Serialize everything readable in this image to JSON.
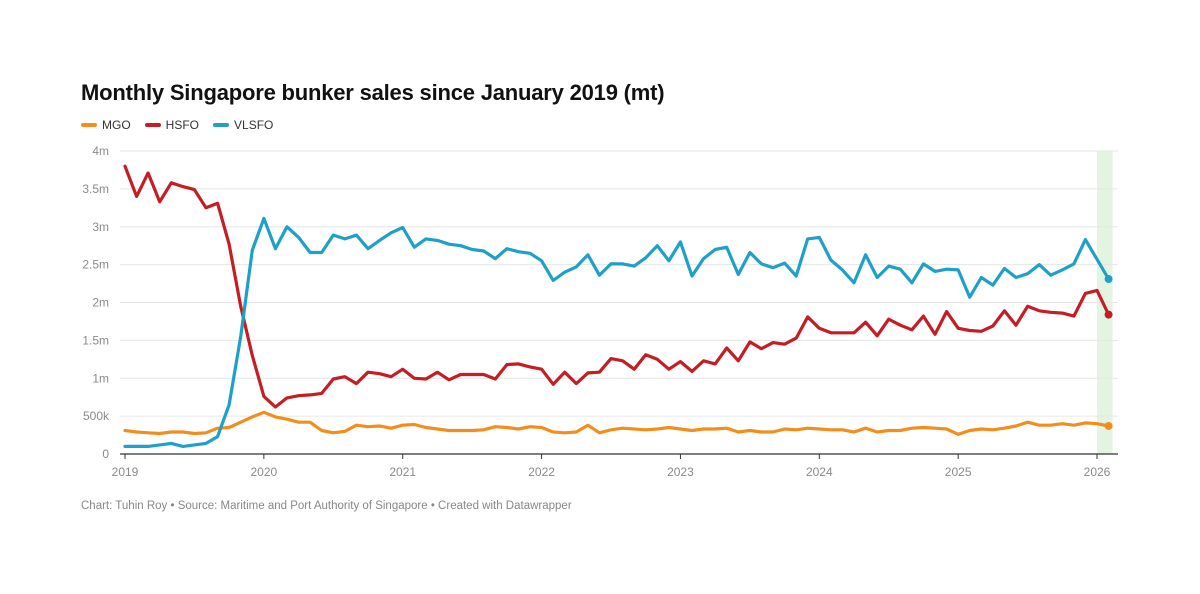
{
  "colors": {
    "MGO": "#f28e1c",
    "HSFO": "#c41e24",
    "VLSFO": "#1ea0c8",
    "highlight": "#e3f4e1",
    "grid": "#e6e6e6",
    "axis": "#333333"
  },
  "footer": {
    "text": "Chart: Tuhin Roy • Source: Maritime and Port Authority of Singapore • Created with Datawrapper"
  },
  "chart_data": {
    "type": "line",
    "title": "Monthly Singapore bunker sales since January 2019 (mt)",
    "xlabel": "",
    "ylabel": "",
    "ylim": [
      0,
      4000000
    ],
    "yticks": [
      0,
      500000,
      1000000,
      1500000,
      2000000,
      2500000,
      3000000,
      3500000,
      4000000
    ],
    "ytick_labels": [
      "0",
      "500k",
      "1m",
      "1.5m",
      "2m",
      "2.5m",
      "3m",
      "3.5m",
      "4m"
    ],
    "xticks": [
      "2019",
      "2020",
      "2021",
      "2022",
      "2023",
      "2024",
      "2025",
      "2026"
    ],
    "x_start": "2019-01",
    "x_end": "2026-02",
    "x_frequency": "monthly",
    "highlight_range": [
      "2026-01",
      "2026-02"
    ],
    "grid": true,
    "legend_position": "top-left",
    "legend": [
      "MGO",
      "HSFO",
      "VLSFO"
    ],
    "series": [
      {
        "name": "MGO",
        "values": [
          0.31,
          0.29,
          0.28,
          0.27,
          0.29,
          0.29,
          0.27,
          0.28,
          0.34,
          0.35,
          0.42,
          0.49,
          0.55,
          0.49,
          0.46,
          0.42,
          0.42,
          0.31,
          0.28,
          0.3,
          0.38,
          0.36,
          0.37,
          0.34,
          0.38,
          0.39,
          0.35,
          0.33,
          0.31,
          0.31,
          0.31,
          0.32,
          0.36,
          0.35,
          0.33,
          0.36,
          0.35,
          0.29,
          0.28,
          0.29,
          0.38,
          0.28,
          0.32,
          0.34,
          0.33,
          0.32,
          0.33,
          0.35,
          0.33,
          0.31,
          0.33,
          0.33,
          0.34,
          0.29,
          0.31,
          0.29,
          0.29,
          0.33,
          0.32,
          0.34,
          0.33,
          0.32,
          0.32,
          0.29,
          0.34,
          0.29,
          0.31,
          0.31,
          0.34,
          0.35,
          0.34,
          0.33,
          0.26,
          0.31,
          0.33,
          0.32,
          0.34,
          0.37,
          0.42,
          0.38,
          0.38,
          0.4,
          0.38,
          0.41,
          0.4,
          0.37
        ]
      },
      {
        "name": "HSFO",
        "values": [
          3.8,
          3.4,
          3.71,
          3.33,
          3.58,
          3.53,
          3.49,
          3.25,
          3.31,
          2.77,
          1.95,
          1.3,
          0.76,
          0.62,
          0.74,
          0.77,
          0.78,
          0.8,
          0.99,
          1.02,
          0.93,
          1.08,
          1.06,
          1.02,
          1.12,
          1.0,
          0.99,
          1.08,
          0.98,
          1.05,
          1.05,
          1.05,
          0.99,
          1.18,
          1.19,
          1.15,
          1.12,
          0.92,
          1.08,
          0.93,
          1.07,
          1.08,
          1.26,
          1.23,
          1.12,
          1.31,
          1.25,
          1.12,
          1.22,
          1.09,
          1.23,
          1.19,
          1.4,
          1.23,
          1.48,
          1.39,
          1.47,
          1.45,
          1.53,
          1.81,
          1.66,
          1.6,
          1.6,
          1.6,
          1.74,
          1.56,
          1.78,
          1.7,
          1.64,
          1.82,
          1.58,
          1.88,
          1.66,
          1.63,
          1.62,
          1.69,
          1.89,
          1.7,
          1.95,
          1.89,
          1.87,
          1.86,
          1.82,
          2.12,
          2.16,
          1.84
        ]
      },
      {
        "name": "VLSFO",
        "values": [
          0.1,
          0.1,
          0.1,
          0.12,
          0.14,
          0.1,
          0.12,
          0.14,
          0.23,
          0.65,
          1.55,
          2.69,
          3.11,
          2.71,
          3.0,
          2.86,
          2.66,
          2.66,
          2.89,
          2.84,
          2.89,
          2.71,
          2.82,
          2.92,
          2.99,
          2.73,
          2.84,
          2.82,
          2.77,
          2.75,
          2.7,
          2.68,
          2.58,
          2.71,
          2.67,
          2.65,
          2.55,
          2.29,
          2.4,
          2.47,
          2.63,
          2.36,
          2.51,
          2.51,
          2.48,
          2.59,
          2.75,
          2.55,
          2.8,
          2.35,
          2.58,
          2.7,
          2.73,
          2.37,
          2.66,
          2.51,
          2.46,
          2.52,
          2.35,
          2.84,
          2.86,
          2.56,
          2.43,
          2.26,
          2.63,
          2.33,
          2.48,
          2.44,
          2.26,
          2.51,
          2.41,
          2.44,
          2.43,
          2.07,
          2.33,
          2.23,
          2.45,
          2.33,
          2.38,
          2.5,
          2.36,
          2.43,
          2.51,
          2.83,
          2.57,
          2.31
        ]
      }
    ],
    "value_unit": "millions of tonnes"
  }
}
